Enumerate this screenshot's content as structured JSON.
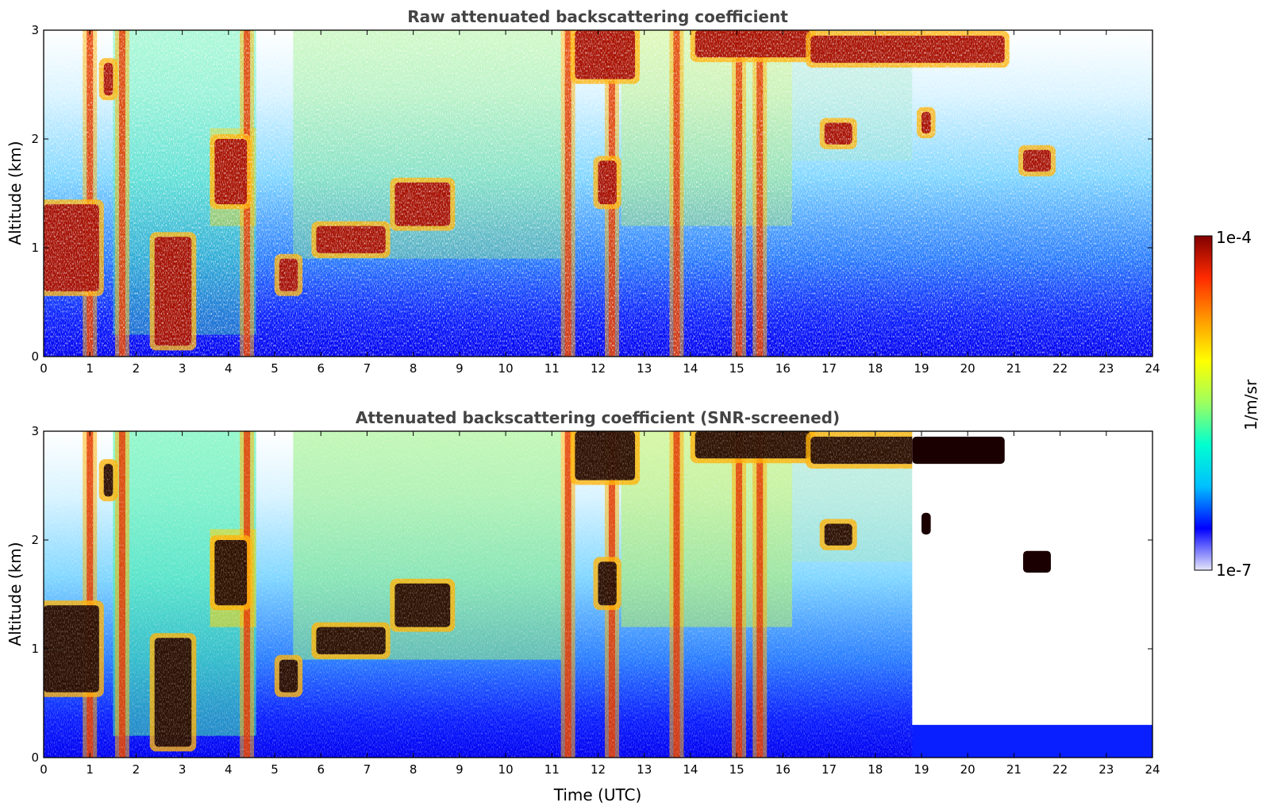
{
  "chart_data": [
    {
      "type": "heatmap",
      "title": "Raw attenuated backscattering coefficient",
      "xlabel": "",
      "ylabel": "Altitude (km)",
      "xlim": [
        0,
        24
      ],
      "ylim": [
        0,
        3
      ],
      "xticks": [
        "0",
        "1",
        "2",
        "3",
        "4",
        "5",
        "6",
        "7",
        "8",
        "9",
        "10",
        "11",
        "12",
        "13",
        "14",
        "15",
        "16",
        "17",
        "18",
        "19",
        "20",
        "21",
        "22",
        "23",
        "24"
      ],
      "yticks": [
        "0",
        "1",
        "2",
        "3"
      ],
      "screened": false
    },
    {
      "type": "heatmap",
      "title": "Attenuated backscattering coefficient (SNR-screened)",
      "xlabel": "Time (UTC)",
      "ylabel": "Altitude (km)",
      "xlim": [
        0,
        24
      ],
      "ylim": [
        0,
        3
      ],
      "xticks": [
        "0",
        "1",
        "2",
        "3",
        "4",
        "5",
        "6",
        "7",
        "8",
        "9",
        "10",
        "11",
        "12",
        "13",
        "14",
        "15",
        "16",
        "17",
        "18",
        "19",
        "20",
        "21",
        "22",
        "23",
        "24"
      ],
      "yticks": [
        "0",
        "1",
        "2",
        "3"
      ],
      "screened": true
    }
  ],
  "colorbar": {
    "label": "1/m/sr",
    "max_label": "1e-4",
    "min_label": "1e-7",
    "colormap": "jet",
    "scale": "log",
    "colors": [
      "#e6e6fa",
      "#0000ff",
      "#00bfff",
      "#00ffd0",
      "#9cff60",
      "#ffff00",
      "#ff9900",
      "#ff2a00",
      "#800000"
    ]
  },
  "features": {
    "cloud_layers": [
      {
        "t_start": 0.0,
        "t_end": 1.2,
        "z_bottom": 0.6,
        "z_top": 1.4
      },
      {
        "t_start": 1.3,
        "t_end": 1.5,
        "z_bottom": 2.4,
        "z_top": 2.7
      },
      {
        "t_start": 2.4,
        "t_end": 3.2,
        "z_bottom": 0.1,
        "z_top": 1.1
      },
      {
        "t_start": 3.7,
        "t_end": 4.4,
        "z_bottom": 1.4,
        "z_top": 2.0
      },
      {
        "t_start": 5.1,
        "t_end": 5.5,
        "z_bottom": 0.6,
        "z_top": 0.9
      },
      {
        "t_start": 5.9,
        "t_end": 7.4,
        "z_bottom": 0.95,
        "z_top": 1.2
      },
      {
        "t_start": 7.6,
        "t_end": 8.8,
        "z_bottom": 1.2,
        "z_top": 1.6
      },
      {
        "t_start": 11.5,
        "t_end": 12.8,
        "z_bottom": 2.55,
        "z_top": 3.0
      },
      {
        "t_start": 12.0,
        "t_end": 12.4,
        "z_bottom": 1.4,
        "z_top": 1.8
      },
      {
        "t_start": 14.1,
        "t_end": 16.6,
        "z_bottom": 2.75,
        "z_top": 3.0
      },
      {
        "t_start": 16.6,
        "t_end": 20.8,
        "z_bottom": 2.7,
        "z_top": 2.95
      },
      {
        "t_start": 16.9,
        "t_end": 17.5,
        "z_bottom": 1.95,
        "z_top": 2.15
      },
      {
        "t_start": 19.0,
        "t_end": 19.2,
        "z_bottom": 2.05,
        "z_top": 2.25
      },
      {
        "t_start": 21.2,
        "t_end": 21.8,
        "z_bottom": 1.7,
        "z_top": 1.9
      }
    ],
    "precipitation_streaks": [
      1.0,
      1.7,
      4.4,
      11.35,
      12.3,
      13.7,
      15.05,
      15.5
    ],
    "screened_data_gap": {
      "t_start": 18.8,
      "t_end": 24.0,
      "z_above": 0.3
    }
  }
}
